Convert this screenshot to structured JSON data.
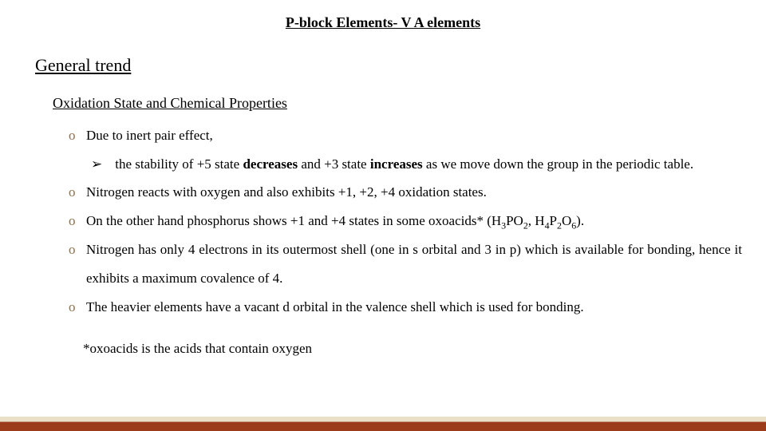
{
  "pageTitle": "P-block Elements- V A  elements",
  "sectionHeading": "General trend",
  "subheading": "Oxidation State and Chemical Properties",
  "circleMarkerColor": "#8b6f4e",
  "arrowMarkerColor": "#000000",
  "bullets": {
    "b1": "Due to inert pair effect,",
    "b1a_pre": "the stability of +5 state ",
    "b1a_bold1": "decreases",
    "b1a_mid": " and +3 state ",
    "b1a_bold2": "increases",
    "b1a_post": " as we move down the group in  the periodic table.",
    "b2": "Nitrogen reacts with oxygen and also exhibits +1, +2, +4 oxidation states.",
    "b3_pre": "On the other hand phosphorus shows +1 and +4 states in some oxoacids* (H",
    "b3_s1a": "3",
    "b3_m1": "PO",
    "b3_s1b": "2",
    "b3_m2": ", H",
    "b3_s2a": "4",
    "b3_m3": "P",
    "b3_s2b": "2",
    "b3_m4": "O",
    "b3_s2c": "6",
    "b3_post": ").",
    "b4": "Nitrogen has only 4 electrons in its outermost shell (one in s orbital and 3 in p) which is available for bonding, hence it exhibits a maximum covalence of 4.",
    "b5": "The heavier elements have a vacant d orbital in the valence shell which is used for bonding."
  },
  "footnote": "*oxoacids  is the acids that contain oxygen",
  "footerBar": {
    "topColor": "#eadfc7",
    "bottomColor": "#9c3b1a"
  }
}
